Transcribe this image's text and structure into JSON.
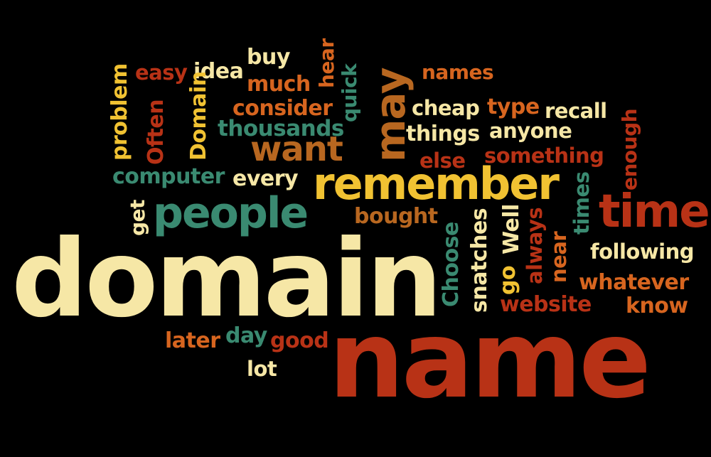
{
  "colors": {
    "background": "#000000",
    "cream": "#f6e7a6",
    "yellow": "#f1c232",
    "orange": "#d7651f",
    "red": "#b83216",
    "teal": "#3a8a71",
    "brown": "#b86720"
  },
  "words": {
    "domain": "domain",
    "name": "name",
    "remember": "remember",
    "people": "people",
    "time": "time",
    "want": "want",
    "may": "may",
    "easy": "easy",
    "idea": "idea",
    "buy": "buy",
    "hear": "hear",
    "much": "much",
    "consider": "consider",
    "thousands": "thousands",
    "quick": "quick",
    "names": "names",
    "cheap": "cheap",
    "type": "type",
    "recall": "recall",
    "things": "things",
    "anyone": "anyone",
    "else": "else",
    "something": "something",
    "enough": "enough",
    "problem": "problem",
    "often": "Often",
    "domain_cap": "Domain",
    "computer": "computer",
    "every": "every",
    "get": "get",
    "bought": "bought",
    "choose": "Choose",
    "snatches": "snatches",
    "well": "Well",
    "go": "go",
    "always": "always",
    "near": "near",
    "times": "times",
    "following": "following",
    "whatever": "whatever",
    "website": "website",
    "know": "know",
    "later": "later",
    "day": "day",
    "good": "good",
    "lot": "lot"
  }
}
